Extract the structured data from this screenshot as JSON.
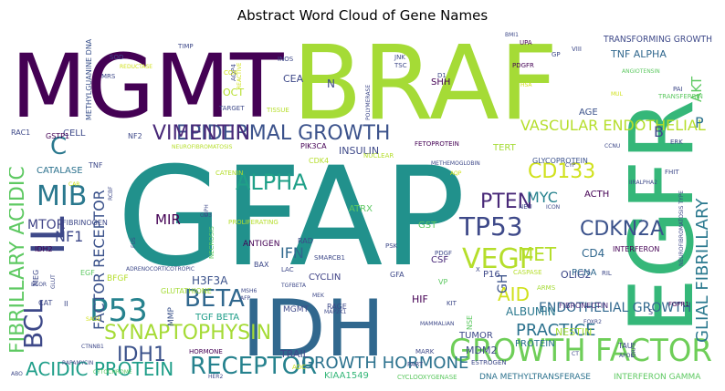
{
  "chart_data": {
    "type": "wordcloud",
    "title": "Abstract Word Cloud of Gene Names",
    "palette": "viridis",
    "background": "#ffffff",
    "words": [
      {
        "text": "GFAP",
        "weight": 100,
        "color": "#21918c"
      },
      {
        "text": "BRAF",
        "weight": 92,
        "color": "#a5db36"
      },
      {
        "text": "MGMT",
        "weight": 90,
        "color": "#440154"
      },
      {
        "text": "EGFR",
        "weight": 88,
        "color": "#35b779"
      },
      {
        "text": "IDH",
        "weight": 76,
        "color": "#31688e"
      },
      {
        "text": "GROWTH FACTOR",
        "weight": 30,
        "color": "#6ece58"
      },
      {
        "text": "EPIDERMAL GROWTH",
        "weight": 24,
        "color": "#3b528b"
      },
      {
        "text": "VIMENTIN",
        "weight": 22,
        "color": "#482878"
      },
      {
        "text": "IL",
        "weight": 34,
        "color": "#3e4989"
      },
      {
        "text": "P53",
        "weight": 28,
        "color": "#26828e"
      },
      {
        "text": "VEGF",
        "weight": 27,
        "color": "#b5de2b"
      },
      {
        "text": "MIB",
        "weight": 26,
        "color": "#2a788e"
      },
      {
        "text": "TP53",
        "weight": 24,
        "color": "#3e4989"
      },
      {
        "text": "PTEN",
        "weight": 22,
        "color": "#482878"
      },
      {
        "text": "BETA",
        "weight": 22,
        "color": "#31688e"
      },
      {
        "text": "ALPHA",
        "weight": 22,
        "color": "#1fa088"
      },
      {
        "text": "SYNAPTOPHYSIN",
        "weight": 20,
        "color": "#a5db36"
      },
      {
        "text": "RECEPTOR",
        "weight": 20,
        "color": "#26828e"
      },
      {
        "text": "GROWTH HORMONE",
        "weight": 17,
        "color": "#2c728e"
      },
      {
        "text": "ACIDIC PROTEIN",
        "weight": 17,
        "color": "#1f9e89"
      },
      {
        "text": "IDH1",
        "weight": 20,
        "color": "#3b528b"
      },
      {
        "text": "BCL",
        "weight": 22,
        "color": "#3e4989"
      },
      {
        "text": "FIBRILLARY ACIDIC",
        "weight": 19,
        "color": "#5ec962"
      },
      {
        "text": "GLIAL FIBRILLARY",
        "weight": 17,
        "color": "#2a788e"
      },
      {
        "text": "CD133",
        "weight": 18,
        "color": "#d0e11c"
      },
      {
        "text": "VASCULAR ENDOTHELIAL",
        "weight": 14,
        "color": "#b5de2b"
      },
      {
        "text": "CDKN2A",
        "weight": 17,
        "color": "#3b528b"
      },
      {
        "text": "MET",
        "weight": 17,
        "color": "#b5de2b"
      },
      {
        "text": "PRACTICE",
        "weight": 15,
        "color": "#2c728e"
      },
      {
        "text": "ENDOTHELIAL GROWTH",
        "weight": 12,
        "color": "#31688e"
      },
      {
        "text": "FACTOR RECEPTOR",
        "weight": 15,
        "color": "#3b528b"
      },
      {
        "text": "MYC",
        "weight": 14,
        "color": "#26828e"
      },
      {
        "text": "AID",
        "weight": 16,
        "color": "#d0e11c"
      },
      {
        "text": "NF1",
        "weight": 14,
        "color": "#3e4989"
      },
      {
        "text": "MTOR",
        "weight": 13,
        "color": "#414487"
      },
      {
        "text": "MIR",
        "weight": 13,
        "color": "#440154"
      },
      {
        "text": "IFN",
        "weight": 14,
        "color": "#31688e"
      },
      {
        "text": "C",
        "weight": 20,
        "color": "#2a788e"
      },
      {
        "text": "AKT",
        "weight": 14,
        "color": "#5ec962"
      },
      {
        "text": "B",
        "weight": 14,
        "color": "#3e4989"
      },
      {
        "text": "P",
        "weight": 14,
        "color": "#2c728e"
      },
      {
        "text": "GH",
        "weight": 13,
        "color": "#3b528b"
      },
      {
        "text": "CD4",
        "weight": 11,
        "color": "#31688e"
      },
      {
        "text": "ALBUMIN",
        "weight": 10,
        "color": "#2a788e"
      },
      {
        "text": "MDM2",
        "weight": 9,
        "color": "#3e4989"
      },
      {
        "text": "NESTIN",
        "weight": 9,
        "color": "#a5db36"
      },
      {
        "text": "INSULIN",
        "weight": 9,
        "color": "#3e4989"
      },
      {
        "text": "H3F3A",
        "weight": 9,
        "color": "#3b528b"
      },
      {
        "text": "TGF BETA",
        "weight": 8,
        "color": "#1f9e89"
      },
      {
        "text": "CYCLIN",
        "weight": 8,
        "color": "#414487"
      },
      {
        "text": "TRAIL",
        "weight": 9,
        "color": "#3e4989"
      },
      {
        "text": "HIF",
        "weight": 9,
        "color": "#440154"
      },
      {
        "text": "TUMOR",
        "weight": 8,
        "color": "#3e4989"
      },
      {
        "text": "PROTEIN",
        "weight": 8,
        "color": "#2c728e"
      },
      {
        "text": "OLIG2",
        "weight": 8,
        "color": "#3e4989"
      },
      {
        "text": "TRANSFORMING GROWTH",
        "weight": 8,
        "color": "#3e4989"
      },
      {
        "text": "TNF ALPHA",
        "weight": 9,
        "color": "#31688e"
      },
      {
        "text": "CEA",
        "weight": 8,
        "color": "#3e4989"
      },
      {
        "text": "AGE",
        "weight": 8,
        "color": "#3b528b"
      },
      {
        "text": "CATALASE",
        "weight": 8,
        "color": "#2c728e"
      },
      {
        "text": "CELL",
        "weight": 8,
        "color": "#3e4989"
      },
      {
        "text": "KIAA1549",
        "weight": 8,
        "color": "#35b779"
      },
      {
        "text": "DNA METHYLTRANSFERASE",
        "weight": 7,
        "color": "#2c728e"
      },
      {
        "text": "INTERFERON GAMMA",
        "weight": 7,
        "color": "#5ec962"
      },
      {
        "text": "OCT",
        "weight": 8,
        "color": "#b5de2b"
      },
      {
        "text": "SHH",
        "weight": 8,
        "color": "#440154"
      },
      {
        "text": "ATRX",
        "weight": 8,
        "color": "#5ec962"
      },
      {
        "text": "GST",
        "weight": 8,
        "color": "#5ec962"
      },
      {
        "text": "CSF",
        "weight": 8,
        "color": "#482878"
      },
      {
        "text": "P16",
        "weight": 8,
        "color": "#3e4989"
      },
      {
        "text": "PCNA",
        "weight": 8,
        "color": "#31688e"
      },
      {
        "text": "ACTH",
        "weight": 8,
        "color": "#440154"
      },
      {
        "text": "TERT",
        "weight": 8,
        "color": "#a5db36"
      },
      {
        "text": "BFGF",
        "weight": 7,
        "color": "#b5de2b"
      },
      {
        "text": "MMP",
        "weight": 7,
        "color": "#3b528b"
      },
      {
        "text": "ANTIGEN",
        "weight": 7,
        "color": "#440154"
      },
      {
        "text": "MGMT",
        "weight": 7,
        "color": "#3e4989"
      },
      {
        "text": "RAGE",
        "weight": 7,
        "color": "#3e4989"
      },
      {
        "text": "FIBRONECTIN",
        "weight": 6,
        "color": "#482878"
      },
      {
        "text": "INTERFERON",
        "weight": 6,
        "color": "#440154"
      },
      {
        "text": "NSE",
        "weight": 6,
        "color": "#5ec962"
      },
      {
        "text": "TAU",
        "weight": 6,
        "color": "#3e4989"
      },
      {
        "text": "GLYCOPROTEIN",
        "weight": 6,
        "color": "#3b528b"
      },
      {
        "text": "FIBRINOGEN",
        "weight": 6,
        "color": "#3e4989"
      },
      {
        "text": "CDK4",
        "weight": 6,
        "color": "#b5de2b"
      },
      {
        "text": "GLUTATHIONE",
        "weight": 6,
        "color": "#a5db36"
      },
      {
        "text": "METHYLGUANINE DNA",
        "weight": 6,
        "color": "#3b528b"
      },
      {
        "text": "NF2",
        "weight": 6,
        "color": "#3e4989"
      },
      {
        "text": "PIK3CA",
        "weight": 6,
        "color": "#440154"
      },
      {
        "text": "TNF",
        "weight": 6,
        "color": "#3e4989"
      },
      {
        "text": "GSTP1",
        "weight": 6,
        "color": "#440154"
      },
      {
        "text": "RAC1",
        "weight": 6,
        "color": "#3e4989"
      },
      {
        "text": "IDH2",
        "weight": 6,
        "color": "#440154"
      },
      {
        "text": "CAT",
        "weight": 6,
        "color": "#3e4989"
      },
      {
        "text": "II",
        "weight": 6,
        "color": "#3e4989"
      },
      {
        "text": "EGF",
        "weight": 6,
        "color": "#5ec962"
      },
      {
        "text": "MEG",
        "weight": 6,
        "color": "#3e4989"
      },
      {
        "text": "BAX",
        "weight": 6,
        "color": "#3e4989"
      },
      {
        "text": "RAD",
        "weight": 6,
        "color": "#3e4989"
      },
      {
        "text": "LAC",
        "weight": 5,
        "color": "#3e4989"
      },
      {
        "text": "GFA",
        "weight": 6,
        "color": "#3e4989"
      },
      {
        "text": "PSK",
        "weight": 5,
        "color": "#3e4989"
      },
      {
        "text": "SMARCB1",
        "weight": 5,
        "color": "#3e4989"
      },
      {
        "text": "PDGF",
        "weight": 5,
        "color": "#3e4989"
      },
      {
        "text": "VP",
        "weight": 6,
        "color": "#5ec962"
      },
      {
        "text": "KIT",
        "weight": 5,
        "color": "#3e4989"
      },
      {
        "text": "CASPASE",
        "weight": 5,
        "color": "#b5de2b"
      },
      {
        "text": "ARMS",
        "weight": 5,
        "color": "#a5db36"
      },
      {
        "text": "RIL",
        "weight": 5,
        "color": "#3e4989"
      },
      {
        "text": "FGFR1",
        "weight": 5,
        "color": "#440154"
      },
      {
        "text": "MARK",
        "weight": 5,
        "color": "#3e4989"
      },
      {
        "text": "ESTROGEN",
        "weight": 5,
        "color": "#3e4989"
      },
      {
        "text": "PART",
        "weight": 5,
        "color": "#3e4989"
      },
      {
        "text": "CYCLOOXYGENASE",
        "weight": 5,
        "color": "#5ec962"
      },
      {
        "text": "HORMONE",
        "weight": 5,
        "color": "#440154"
      },
      {
        "text": "ADC",
        "weight": 5,
        "color": "#d0e11c"
      },
      {
        "text": "TARGET",
        "weight": 5,
        "color": "#3e4989"
      },
      {
        "text": "TISSUE",
        "weight": 5,
        "color": "#b5de2b"
      },
      {
        "text": "CATENIN",
        "weight": 5,
        "color": "#b5de2b"
      },
      {
        "text": "NECROSIS",
        "weight": 5,
        "color": "#5ec962"
      },
      {
        "text": "PROLIFERATING",
        "weight": 5,
        "color": "#b5de2b"
      },
      {
        "text": "NEUROFIBROMATOSIS",
        "weight": 5,
        "color": "#b5de2b"
      },
      {
        "text": "FETOPROTEIN",
        "weight": 5,
        "color": "#440154"
      },
      {
        "text": "NUCLEAR",
        "weight": 5,
        "color": "#b5de2b"
      },
      {
        "text": "METHEMOGLOBIN",
        "weight": 5,
        "color": "#3e4989"
      },
      {
        "text": "PDGFR",
        "weight": 5,
        "color": "#440154"
      },
      {
        "text": "ANGIOTENSIN",
        "weight": 5,
        "color": "#5ec962"
      },
      {
        "text": "TRANSFERRIN",
        "weight": 5,
        "color": "#5ec962"
      },
      {
        "text": "PAI",
        "weight": 5,
        "color": "#3e4989"
      },
      {
        "text": "ERK",
        "weight": 5,
        "color": "#3e4989"
      },
      {
        "text": "FHIT",
        "weight": 5,
        "color": "#3e4989"
      },
      {
        "text": "CCNU",
        "weight": 5,
        "color": "#3e4989"
      },
      {
        "text": "CYP",
        "weight": 5,
        "color": "#3e4989"
      },
      {
        "text": "SOD",
        "weight": 5,
        "color": "#3e4989"
      },
      {
        "text": "MRS",
        "weight": 5,
        "color": "#3e4989"
      },
      {
        "text": "REDUCTASE",
        "weight": 5,
        "color": "#d0e11c"
      },
      {
        "text": "AQP4",
        "weight": 5,
        "color": "#3e4989"
      },
      {
        "text": "INOS",
        "weight": 5,
        "color": "#3e4989"
      },
      {
        "text": "JNK",
        "weight": 5,
        "color": "#3e4989"
      },
      {
        "text": "TSC",
        "weight": 5,
        "color": "#3e4989"
      },
      {
        "text": "D1",
        "weight": 5,
        "color": "#3e4989"
      },
      {
        "text": "UPA",
        "weight": 5,
        "color": "#440154"
      },
      {
        "text": "VIII",
        "weight": 5,
        "color": "#3e4989"
      },
      {
        "text": "GP",
        "weight": 5,
        "color": "#3e4989"
      },
      {
        "text": "BMI1",
        "weight": 5,
        "color": "#3e4989"
      },
      {
        "text": "TIMP",
        "weight": 5,
        "color": "#3e4989"
      },
      {
        "text": "COX",
        "weight": 5,
        "color": "#d0e11c"
      },
      {
        "text": "N",
        "weight": 6,
        "color": "#3e4989"
      },
      {
        "text": "POLYMERASE",
        "weight": 5,
        "color": "#3e4989"
      },
      {
        "text": "HSA",
        "weight": 5,
        "color": "#d0e11c"
      },
      {
        "text": "MUL",
        "weight": 5,
        "color": "#d0e11c"
      },
      {
        "text": "X",
        "weight": 5,
        "color": "#3e4989"
      },
      {
        "text": "NEU",
        "weight": 5,
        "color": "#3e4989"
      },
      {
        "text": "ICON",
        "weight": 5,
        "color": "#3e4989"
      },
      {
        "text": "AQP",
        "weight": 5,
        "color": "#d0e11c"
      },
      {
        "text": "IIRALPHA2",
        "weight": 5,
        "color": "#3e4989"
      },
      {
        "text": "ADRENOCORTICOTROPIC",
        "weight": 5,
        "color": "#3e4989"
      },
      {
        "text": "AFP",
        "weight": 5,
        "color": "#3e4989"
      },
      {
        "text": "MSH6",
        "weight": 5,
        "color": "#3e4989"
      },
      {
        "text": "TGFBETA",
        "weight": 5,
        "color": "#3e4989"
      },
      {
        "text": "MEK",
        "weight": 5,
        "color": "#3e4989"
      },
      {
        "text": "MAP2K1",
        "weight": 5,
        "color": "#3e4989"
      },
      {
        "text": "MAMMALIAN",
        "weight": 5,
        "color": "#3e4989"
      },
      {
        "text": "CYTOCHROME",
        "weight": 5,
        "color": "#5ec962"
      },
      {
        "text": "CTNNB1",
        "weight": 5,
        "color": "#3e4989"
      },
      {
        "text": "RAPAMYCIN",
        "weight": 5,
        "color": "#3e4989"
      },
      {
        "text": "SAGE",
        "weight": 5,
        "color": "#d0e11c"
      },
      {
        "text": "GLUT",
        "weight": 5,
        "color": "#3e4989"
      },
      {
        "text": "ABO",
        "weight": 5,
        "color": "#3e4989"
      },
      {
        "text": "HER2",
        "weight": 5,
        "color": "#3e4989"
      },
      {
        "text": "CT",
        "weight": 5,
        "color": "#3e4989"
      },
      {
        "text": "APOE",
        "weight": 5,
        "color": "#3e4989"
      },
      {
        "text": "GRPR",
        "weight": 5,
        "color": "#3e4989"
      },
      {
        "text": "FOXR2",
        "weight": 5,
        "color": "#3e4989"
      },
      {
        "text": "NEUROFIBROMATOSIS TYPE",
        "weight": 5,
        "color": "#3e4989"
      },
      {
        "text": "RCBF",
        "weight": 5,
        "color": "#3e4989"
      },
      {
        "text": "CAR",
        "weight": 5,
        "color": "#d0e11c"
      },
      {
        "text": "BCOR",
        "weight": 5,
        "color": "#3e4989"
      },
      {
        "text": "FUS",
        "weight": 5,
        "color": "#3e4989"
      },
      {
        "text": "GD3",
        "weight": 5,
        "color": "#3e4989"
      },
      {
        "text": "GPH",
        "weight": 5,
        "color": "#3e4989"
      },
      {
        "text": "REACTIVE",
        "weight": 5,
        "color": "#d0e11c"
      },
      {
        "text": "S",
        "weight": 5,
        "color": "#3e4989"
      }
    ]
  }
}
